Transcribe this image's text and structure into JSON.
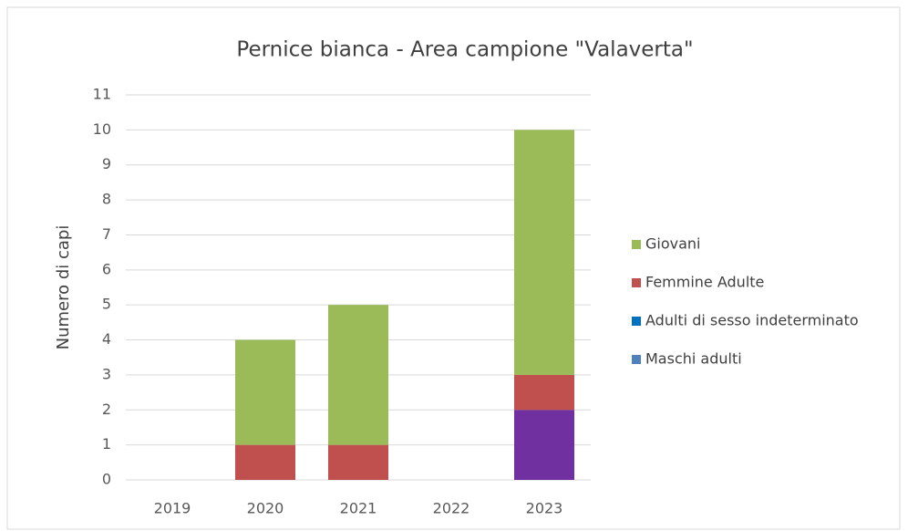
{
  "chart_data": {
    "type": "stacked_bar",
    "title": "Pernice bianca - Area campione \"Valaverta\"",
    "y_label": "Numero di capi",
    "categories": [
      "2019",
      "2020",
      "2021",
      "2022",
      "2023"
    ],
    "series": [
      {
        "name": "Maschi adulti",
        "color": "#4f81bd",
        "point_colors": {
          "4": "#7030a0"
        },
        "values": [
          0,
          0,
          0,
          0,
          2
        ]
      },
      {
        "name": "Adulti di sesso indeterminato",
        "color": "#0070c0",
        "values": [
          0,
          0,
          0,
          0,
          0
        ]
      },
      {
        "name": "Femmine Adulte",
        "color": "#c0504d",
        "values": [
          0,
          1,
          1,
          0,
          1
        ]
      },
      {
        "name": "Giovani",
        "color": "#9bbb59",
        "values": [
          0,
          3,
          4,
          0,
          7
        ]
      }
    ],
    "ylim": [
      0,
      11
    ],
    "yticks": [
      0,
      1,
      2,
      3,
      4,
      5,
      6,
      7,
      8,
      9,
      10,
      11
    ],
    "grid": true,
    "legend": "right"
  }
}
